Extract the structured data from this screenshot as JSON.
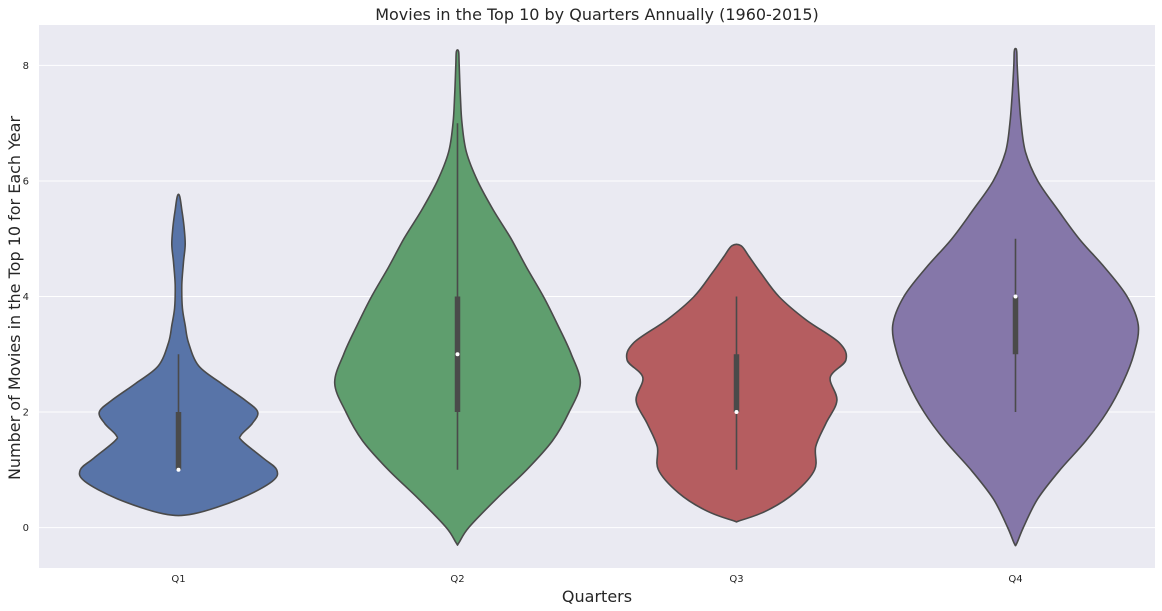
{
  "chart_data": {
    "type": "violin",
    "title": "Movies in the Top 10 by Quarters Annually (1960-2015)",
    "xlabel": "Quarters",
    "ylabel": "Number of Movies in the Top 10 for Each Year",
    "categories": [
      "Q1",
      "Q2",
      "Q3",
      "Q4"
    ],
    "ylim": [
      -0.7,
      8.7
    ],
    "yticks": [
      0,
      2,
      4,
      6,
      8
    ],
    "grid": true,
    "background": "#eaeaf2",
    "grid_color": "#ffffff",
    "outline_color": "#4a4a4a",
    "violins": [
      {
        "category": "Q1",
        "color": "#5874a8",
        "median": 1,
        "q1": 1,
        "q3": 2,
        "whisker_low": 1,
        "whisker_high": 3,
        "profile": [
          [
            0.24,
            0.14
          ],
          [
            0.5,
            0.55
          ],
          [
            0.8,
            0.84
          ],
          [
            1.0,
            0.88
          ],
          [
            1.2,
            0.76
          ],
          [
            1.5,
            0.57
          ],
          [
            1.6,
            0.56
          ],
          [
            1.8,
            0.66
          ],
          [
            2.0,
            0.71
          ],
          [
            2.2,
            0.6
          ],
          [
            2.5,
            0.38
          ],
          [
            2.8,
            0.18
          ],
          [
            3.2,
            0.09
          ],
          [
            3.5,
            0.06
          ],
          [
            3.8,
            0.035
          ],
          [
            4.2,
            0.03
          ],
          [
            4.6,
            0.045
          ],
          [
            4.9,
            0.06
          ],
          [
            5.2,
            0.05
          ],
          [
            5.5,
            0.03
          ],
          [
            5.74,
            0.01
          ]
        ]
      },
      {
        "category": "Q2",
        "color": "#5f9e6e",
        "median": 3,
        "q1": 2,
        "q3": 4,
        "whisker_low": 1,
        "whisker_high": 7,
        "profile": [
          [
            -0.27,
            0.01
          ],
          [
            0.0,
            0.1
          ],
          [
            0.5,
            0.35
          ],
          [
            1.0,
            0.62
          ],
          [
            1.5,
            0.85
          ],
          [
            2.0,
            1.0
          ],
          [
            2.5,
            1.1
          ],
          [
            3.0,
            1.02
          ],
          [
            3.5,
            0.9
          ],
          [
            4.0,
            0.77
          ],
          [
            4.5,
            0.62
          ],
          [
            5.0,
            0.48
          ],
          [
            5.5,
            0.32
          ],
          [
            6.0,
            0.18
          ],
          [
            6.5,
            0.08
          ],
          [
            7.0,
            0.04
          ],
          [
            7.5,
            0.025
          ],
          [
            8.0,
            0.015
          ],
          [
            8.24,
            0.01
          ]
        ]
      },
      {
        "category": "Q3",
        "color": "#b55d60",
        "median": 2,
        "q1": 2,
        "q3": 3,
        "whisker_low": 1,
        "whisker_high": 4,
        "profile": [
          [
            0.12,
            0.03
          ],
          [
            0.3,
            0.28
          ],
          [
            0.6,
            0.52
          ],
          [
            1.0,
            0.7
          ],
          [
            1.4,
            0.71
          ],
          [
            1.8,
            0.8
          ],
          [
            2.2,
            0.9
          ],
          [
            2.6,
            0.84
          ],
          [
            2.9,
            0.98
          ],
          [
            3.2,
            0.92
          ],
          [
            3.6,
            0.62
          ],
          [
            4.0,
            0.38
          ],
          [
            4.4,
            0.22
          ],
          [
            4.7,
            0.11
          ],
          [
            4.88,
            0.04
          ]
        ]
      },
      {
        "category": "Q4",
        "color": "#8577a9",
        "median": 4,
        "q1": 3,
        "q3": 4,
        "whisker_low": 2,
        "whisker_high": 5,
        "profile": [
          [
            -0.28,
            0.01
          ],
          [
            0.0,
            0.07
          ],
          [
            0.5,
            0.2
          ],
          [
            1.0,
            0.4
          ],
          [
            1.5,
            0.63
          ],
          [
            2.0,
            0.82
          ],
          [
            2.5,
            0.96
          ],
          [
            3.0,
            1.06
          ],
          [
            3.5,
            1.1
          ],
          [
            4.0,
            1.0
          ],
          [
            4.5,
            0.8
          ],
          [
            5.0,
            0.57
          ],
          [
            5.5,
            0.38
          ],
          [
            6.0,
            0.2
          ],
          [
            6.5,
            0.09
          ],
          [
            7.0,
            0.05
          ],
          [
            7.5,
            0.03
          ],
          [
            8.0,
            0.015
          ],
          [
            8.26,
            0.01
          ]
        ]
      }
    ]
  }
}
